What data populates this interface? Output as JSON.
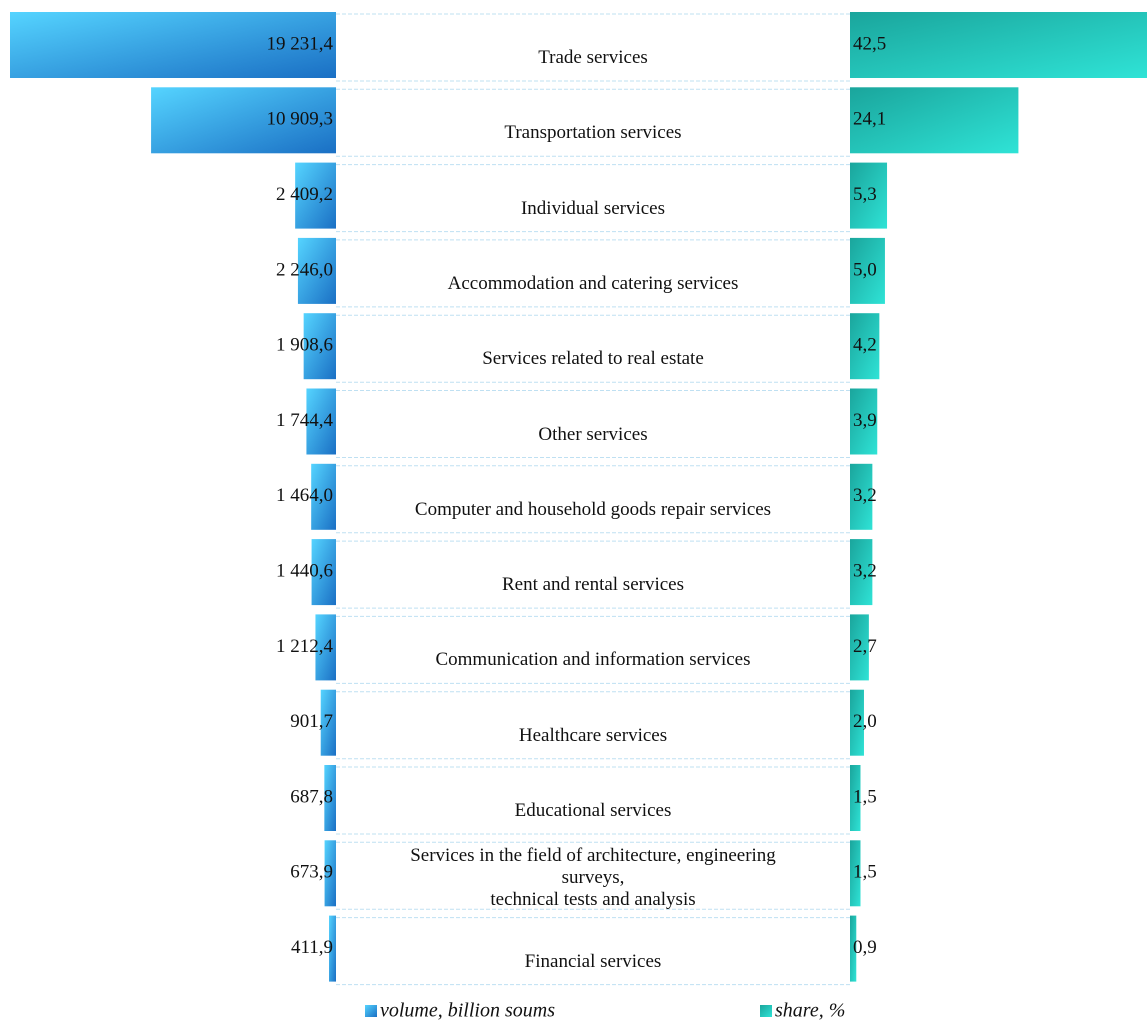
{
  "chart_data": {
    "type": "butterfly-bar",
    "categories": [
      "Trade services",
      "Transportation services",
      "Individual services",
      "Accommodation and catering services",
      "Services related to real estate",
      "Other services",
      "Computer and household goods repair services",
      "Rent and rental services",
      "Communication and information services",
      "Healthcare services",
      "Educational services",
      "Services in the field of architecture, engineering\nsurveys,\ntechnical tests and analysis",
      "Financial services"
    ],
    "series": [
      {
        "name": "volume, billion soums",
        "color": "#1a6fc4",
        "values": [
          19231.4,
          10909.3,
          2409.2,
          2246.0,
          1908.6,
          1744.4,
          1464.0,
          1440.6,
          1212.4,
          901.7,
          687.8,
          673.9,
          411.9
        ],
        "value_labels": [
          "19 231,4",
          "10 909,3",
          "2 409,2",
          "2 246,0",
          "1 908,6",
          "1 744,4",
          "1 464,0",
          "1 440,6",
          "1 212,4",
          "901,7",
          "687,8",
          "673,9",
          "411,9"
        ]
      },
      {
        "name": "share, %",
        "color": "#1aa59c",
        "values": [
          42.5,
          24.1,
          5.3,
          5.0,
          4.2,
          3.9,
          3.2,
          3.2,
          2.7,
          2.0,
          1.5,
          1.5,
          0.9
        ],
        "value_labels": [
          "42,5",
          "24,1",
          "5,3",
          "5,0",
          "4,2",
          "3,9",
          "3,2",
          "3,2",
          "2,7",
          "2,0",
          "1,5",
          "1,5",
          "0,9"
        ]
      }
    ]
  }
}
